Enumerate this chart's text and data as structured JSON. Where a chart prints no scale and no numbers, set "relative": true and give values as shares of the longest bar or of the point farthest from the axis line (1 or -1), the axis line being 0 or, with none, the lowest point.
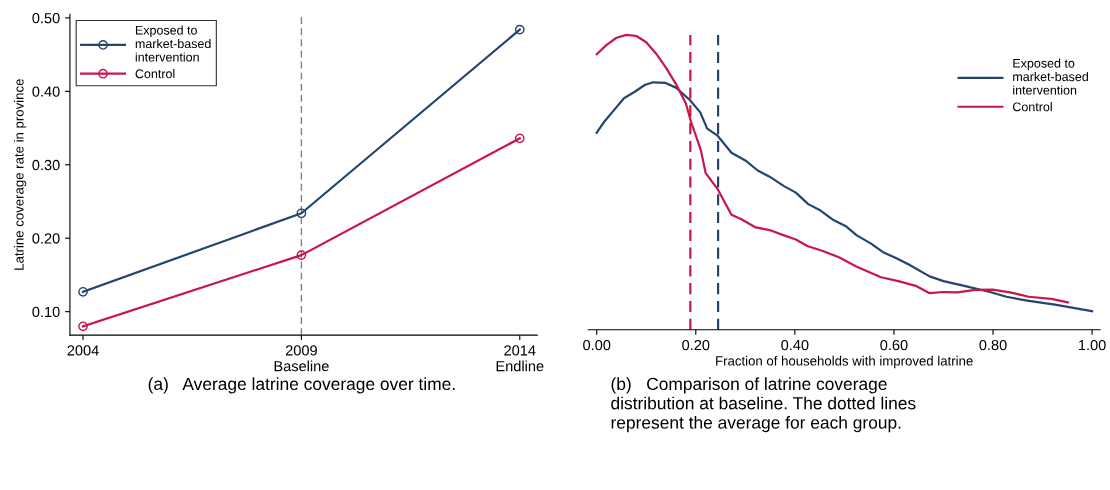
{
  "chart_data": [
    {
      "type": "line",
      "ylabel": "Latrine coverage rate in province",
      "x": [
        2004,
        2009,
        2014
      ],
      "series": [
        {
          "name": "Exposed to\nmarket-based\nintervention",
          "color": "#24456e",
          "values": [
            0.127,
            0.234,
            0.484
          ]
        },
        {
          "name": "Control",
          "color": "#c8174a",
          "values": [
            0.08,
            0.177,
            0.336
          ]
        }
      ],
      "xlim": [
        2003.7,
        2014.4
      ],
      "xticks": [
        2004,
        {
          "value": 2009,
          "label": "2009\nBaseline"
        },
        {
          "value": 2014,
          "label": "2014\nEndline"
        }
      ],
      "ylim": [
        0.068,
        0.505
      ],
      "yticks": [
        {
          "value": 0.1,
          "label": "0.10"
        },
        {
          "value": 0.2,
          "label": "0.20"
        },
        {
          "value": 0.3,
          "label": "0.30"
        },
        {
          "value": 0.4,
          "label": "0.40"
        },
        {
          "value": 0.5,
          "label": "0.50"
        }
      ],
      "ref_lines": [
        {
          "axis": "x",
          "value": 2009,
          "color": "#808080",
          "line_style": "dashed"
        }
      ],
      "marker": "circle",
      "legend": "top left",
      "grid": false,
      "annotations": [
        "(a)   Average latrine coverage over time."
      ]
    },
    {
      "type": "line",
      "relative": true,
      "xlabel": "Fraction of households with improved latrine",
      "series": [
        {
          "name": "Exposed to\nmarket-based\nintervention",
          "color": "#24456e",
          "x": [
            0,
            0.016,
            0.034,
            0.055,
            0.076,
            0.097,
            0.114,
            0.139,
            0.16,
            0.188,
            0.209,
            0.223,
            0.244,
            0.272,
            0.3,
            0.325,
            0.349,
            0.378,
            0.402,
            0.427,
            0.451,
            0.476,
            0.504,
            0.525,
            0.553,
            0.578,
            0.606,
            0.63,
            0.672,
            0.7,
            0.742,
            0.792,
            0.827,
            0.869,
            0.925,
            1.0
          ],
          "values": [
            0.668,
            0.707,
            0.743,
            0.785,
            0.806,
            0.83,
            0.839,
            0.837,
            0.821,
            0.779,
            0.737,
            0.682,
            0.658,
            0.6,
            0.574,
            0.54,
            0.519,
            0.487,
            0.465,
            0.426,
            0.405,
            0.374,
            0.35,
            0.32,
            0.293,
            0.263,
            0.242,
            0.221,
            0.181,
            0.165,
            0.149,
            0.129,
            0.112,
            0.099,
            0.085,
            0.063
          ]
        },
        {
          "name": "Control",
          "color": "#c8174a",
          "x": [
            0,
            0.02,
            0.04,
            0.06,
            0.08,
            0.1,
            0.12,
            0.14,
            0.16,
            0.18,
            0.19,
            0.21,
            0.22,
            0.244,
            0.272,
            0.293,
            0.321,
            0.349,
            0.378,
            0.402,
            0.425,
            0.455,
            0.49,
            0.525,
            0.574,
            0.609,
            0.644,
            0.672,
            0.7,
            0.728,
            0.764,
            0.799,
            0.834,
            0.872,
            0.918,
            0.951
          ],
          "values": [
            0.934,
            0.966,
            0.99,
            1.0,
            0.996,
            0.975,
            0.936,
            0.888,
            0.833,
            0.767,
            0.707,
            0.61,
            0.531,
            0.477,
            0.39,
            0.374,
            0.347,
            0.338,
            0.32,
            0.306,
            0.284,
            0.268,
            0.245,
            0.214,
            0.178,
            0.165,
            0.149,
            0.124,
            0.128,
            0.127,
            0.135,
            0.136,
            0.127,
            0.112,
            0.105,
            0.093
          ]
        }
      ],
      "xlim": [
        -0.017,
        1.016
      ],
      "xticks": [
        {
          "value": 0,
          "label": "0.00"
        },
        {
          "value": 0.2,
          "label": "0.20"
        },
        {
          "value": 0.4,
          "label": "0.40"
        },
        {
          "value": 0.6,
          "label": "0.60"
        },
        {
          "value": 0.8,
          "label": "0.80"
        },
        {
          "value": 1,
          "label": "1.00"
        }
      ],
      "ref_lines": [
        {
          "axis": "x",
          "value": 0.189,
          "color": "#c8174a",
          "line_style": "dashed"
        },
        {
          "axis": "x",
          "value": 0.245,
          "color": "#24456e",
          "line_style": "dashed"
        }
      ],
      "legend": "top right",
      "grid": false,
      "tick_labels": "x",
      "annotations": [
        "(b)   Comparison of latrine coverage\ndistribution at baseline. The dotted lines\nrepresent the average for each group."
      ]
    }
  ]
}
